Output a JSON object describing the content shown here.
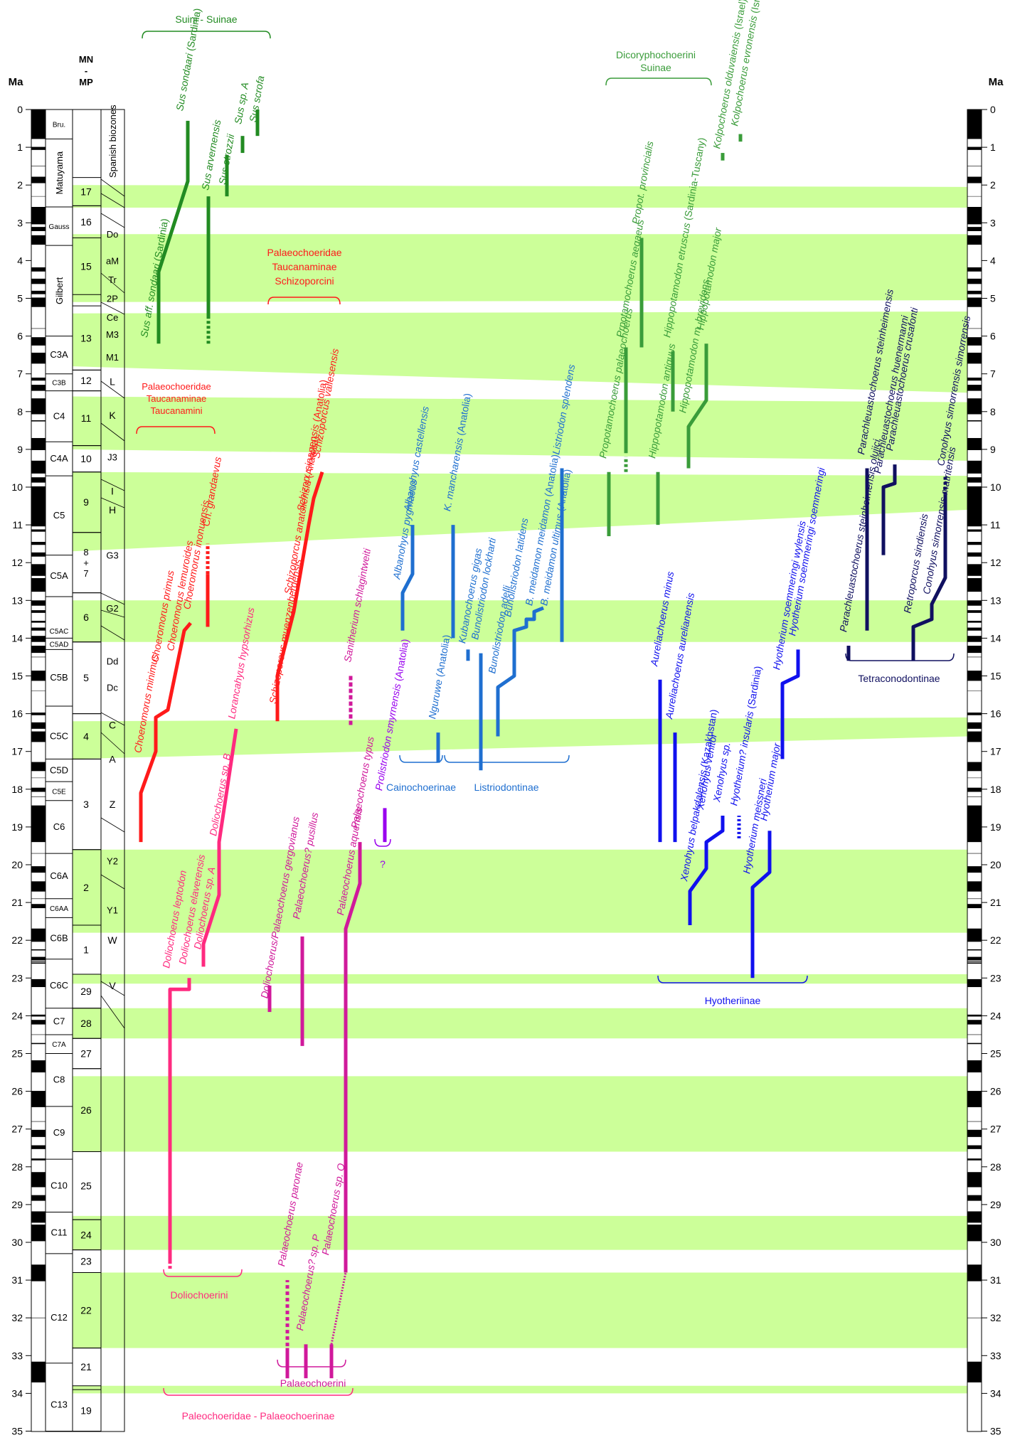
{
  "axis": {
    "label": "Ma",
    "min": 0,
    "max": 35,
    "ticks": [
      0,
      1,
      2,
      3,
      4,
      5,
      6,
      7,
      8,
      9,
      10,
      11,
      12,
      13,
      14,
      15,
      16,
      17,
      18,
      19,
      20,
      21,
      22,
      23,
      24,
      25,
      26,
      27,
      28,
      29,
      30,
      31,
      32,
      33,
      34,
      35
    ]
  },
  "column_headers": {
    "mn": [
      "MN",
      "-",
      "MP"
    ],
    "biozones_title": "Spanish biozones"
  },
  "colors": {
    "band": "#ccff99",
    "suinae": "#228b22",
    "dicoryphochoerini": "#3a9c3a",
    "schizoporcini": "#ff1a1a",
    "doliochoerini": "#ff2a7f",
    "palaeochoerini": "#d0199b",
    "prolistriodon": "#9900ee",
    "listriodontinae": "#1f6fd0",
    "hyotheriinae": "#1010ee",
    "tetraconodontinae": "#101060"
  },
  "epochs": [
    {
      "label": "Bru.",
      "from": 0,
      "to": 0.78
    },
    {
      "label": "Matuyama",
      "from": 0.78,
      "to": 2.58
    },
    {
      "label": "Gauss",
      "from": 2.58,
      "to": 3.6
    },
    {
      "label": "Gilbert",
      "from": 3.6,
      "to": 6.0
    },
    {
      "label": "C3A",
      "from": 6.0,
      "to": 7.0
    },
    {
      "label": "C3B",
      "from": 7.0,
      "to": 7.45
    },
    {
      "label": "C4",
      "from": 7.45,
      "to": 8.8
    },
    {
      "label": "C4A",
      "from": 8.8,
      "to": 9.7
    },
    {
      "label": "C5",
      "from": 9.7,
      "to": 11.8
    },
    {
      "label": "C5A",
      "from": 11.8,
      "to": 12.9
    },
    {
      "label": "C5AC",
      "from": 13.6,
      "to": 14.0
    },
    {
      "label": "C5AD",
      "from": 14.0,
      "to": 14.3
    },
    {
      "label": "C5B",
      "from": 14.3,
      "to": 15.8
    },
    {
      "label": "C5C",
      "from": 16.0,
      "to": 17.2
    },
    {
      "label": "C5D",
      "from": 17.2,
      "to": 17.8
    },
    {
      "label": "C5E",
      "from": 17.8,
      "to": 18.3
    },
    {
      "label": "C6",
      "from": 18.3,
      "to": 19.7
    },
    {
      "label": "C6A",
      "from": 19.7,
      "to": 20.9
    },
    {
      "label": "C6AA",
      "from": 20.9,
      "to": 21.4
    },
    {
      "label": "C6B",
      "from": 21.4,
      "to": 22.5
    },
    {
      "label": "C6C",
      "from": 22.6,
      "to": 23.8
    },
    {
      "label": "C7",
      "from": 23.8,
      "to": 24.5
    },
    {
      "label": "C7A",
      "from": 24.5,
      "to": 25.0
    },
    {
      "label": "C8",
      "from": 25.0,
      "to": 26.4
    },
    {
      "label": "C9",
      "from": 26.4,
      "to": 27.8
    },
    {
      "label": "C10",
      "from": 27.8,
      "to": 29.2
    },
    {
      "label": "C11",
      "from": 29.2,
      "to": 30.3
    },
    {
      "label": "C12",
      "from": 30.8,
      "to": 33.2
    },
    {
      "label": "C13",
      "from": 33.6,
      "to": 35.0
    }
  ],
  "mn_zones": [
    {
      "label": "17",
      "from": 1.8,
      "to": 2.55
    },
    {
      "label": "16",
      "from": 2.55,
      "to": 3.4
    },
    {
      "label": "15",
      "from": 3.4,
      "to": 4.9
    },
    {
      "label": "13",
      "from": 5.2,
      "to": 6.9
    },
    {
      "label": "12",
      "from": 6.9,
      "to": 7.45
    },
    {
      "label": "11",
      "from": 7.45,
      "to": 8.9
    },
    {
      "label": "10",
      "from": 8.9,
      "to": 9.6
    },
    {
      "label": "9",
      "from": 9.6,
      "to": 11.2
    },
    {
      "label": "8\n+\n7",
      "from": 11.2,
      "to": 12.8
    },
    {
      "label": "6",
      "from": 12.8,
      "to": 14.1
    },
    {
      "label": "5",
      "from": 14.1,
      "to": 16.0
    },
    {
      "label": "4",
      "from": 16.0,
      "to": 17.2
    },
    {
      "label": "3",
      "from": 17.2,
      "to": 19.6
    },
    {
      "label": "2",
      "from": 19.6,
      "to": 21.6
    },
    {
      "label": "1",
      "from": 21.6,
      "to": 22.9
    },
    {
      "label": "29",
      "from": 22.9,
      "to": 23.8
    },
    {
      "label": "28",
      "from": 23.8,
      "to": 24.6
    },
    {
      "label": "27",
      "from": 24.6,
      "to": 25.4
    },
    {
      "label": "26",
      "from": 25.4,
      "to": 27.6
    },
    {
      "label": "25",
      "from": 27.6,
      "to": 29.4
    },
    {
      "label": "24",
      "from": 29.4,
      "to": 30.2
    },
    {
      "label": "23",
      "from": 30.2,
      "to": 30.8
    },
    {
      "label": "22",
      "from": 30.8,
      "to": 32.8
    },
    {
      "label": "21",
      "from": 32.8,
      "to": 33.8
    },
    {
      "label": "19",
      "from": 33.9,
      "to": 35.0
    }
  ],
  "biozones": [
    {
      "label": "Do",
      "at": 3.3
    },
    {
      "label": "aM",
      "at": 4.0
    },
    {
      "label": "Tr",
      "at": 4.5
    },
    {
      "label": "2P",
      "at": 5.0
    },
    {
      "label": "Ce",
      "at": 5.5
    },
    {
      "label": "M3",
      "at": 5.95
    },
    {
      "label": "M1",
      "at": 6.55
    },
    {
      "label": "L",
      "at": 7.2
    },
    {
      "label": "K",
      "at": 8.1
    },
    {
      "label": "J3",
      "at": 9.2
    },
    {
      "label": "I",
      "at": 10.1
    },
    {
      "label": "H",
      "at": 10.6
    },
    {
      "label": "G3",
      "at": 11.8
    },
    {
      "label": "G2",
      "at": 13.2
    },
    {
      "label": "Dd",
      "at": 14.6
    },
    {
      "label": "Dc",
      "at": 15.3
    },
    {
      "label": "C",
      "at": 16.3
    },
    {
      "label": "A",
      "at": 17.2
    },
    {
      "label": "Z",
      "at": 18.4
    },
    {
      "label": "Y2",
      "at": 19.9
    },
    {
      "label": "Y1",
      "at": 21.2
    },
    {
      "label": "W",
      "at": 22.0
    },
    {
      "label": "V",
      "at": 23.2
    }
  ],
  "group_labels": {
    "suini": "Suini - Suinae",
    "dicoryphochoerini": [
      "Dicoryphochoerini",
      "Suinae"
    ],
    "schizoporcini": [
      "Palaeochoeridae",
      "Taucanaminae",
      "Schizoporcini"
    ],
    "taucanamini": [
      "Palaeochoeridae",
      "Taucanaminae",
      "Taucanamini"
    ],
    "cainochoerinae": "Cainochoerinae",
    "listriodontinae": "Listriodontinae",
    "hyotheriinae": "Hyotheriinae",
    "tetraconodontinae": "Tetraconodontinae",
    "doliochoerini": "Doliochoerini",
    "palaeochoerini": "Palaeochoerini",
    "palaeochoerinae": "Paleochoeridae - Palaeochoerinae",
    "prolistriodon_query": "?"
  },
  "taxa": [
    {
      "genus": "Sus",
      "epithet": " aff. sondaari",
      "note": "(Sardinia)",
      "color": "suinae"
    },
    {
      "genus": "Sus",
      "epithet": " sondaari",
      "note": "(Sardinia)",
      "color": "suinae"
    },
    {
      "genus": "Sus",
      "epithet": " arvernensis",
      "note": "",
      "color": "suinae"
    },
    {
      "genus": "Sus",
      "epithet": " strozzii",
      "note": "",
      "color": "suinae"
    },
    {
      "genus": "Sus",
      "epithet": " sp. A",
      "note": "",
      "color": "suinae"
    },
    {
      "genus": "Sus",
      "epithet": " scrofa",
      "note": "",
      "color": "suinae"
    },
    {
      "genus": "Propotamochoerus",
      "epithet": " palaeochoerus",
      "note": "",
      "color": "dicoryphochoerini"
    },
    {
      "genus": "Prpotamochoerus",
      "epithet": " aegaeus",
      "note": "",
      "color": "dicoryphochoerini"
    },
    {
      "genus": "Propot.",
      "epithet": " provincialis",
      "note": "",
      "color": "dicoryphochoerini"
    },
    {
      "genus": "Hippopotamodon",
      "epithet": " antiquus",
      "note": "",
      "color": "dicoryphochoerini"
    },
    {
      "genus": "Hippopotamodon",
      "epithet": " etruscus",
      "note": "(Sardinia-Tuscany)",
      "color": "dicoryphochoerini"
    },
    {
      "genus": "Hippopotamodon",
      "epithet": " m. brevidens",
      "note": "",
      "color": "dicoryphochoerini"
    },
    {
      "genus": "Hippopotamodon",
      "epithet": " major",
      "note": "",
      "color": "dicoryphochoerini"
    },
    {
      "genus": "Kolpochoerus",
      "epithet": " olduvaiensis",
      "note": "(Israel)",
      "color": "dicoryphochoerini"
    },
    {
      "genus": "Kolpochoerus",
      "epithet": " evronensis",
      "note": "(Israel)",
      "color": "dicoryphochoerini"
    },
    {
      "genus": "Choeromorus",
      "epithet": " minimus",
      "note": "",
      "color": "schizoporcini"
    },
    {
      "genus": "Choeromorus",
      "epithet": " primus",
      "note": "",
      "color": "schizoporcini"
    },
    {
      "genus": "Choeromorus",
      "epithet": " lemuroides",
      "note": "",
      "color": "schizoporcini"
    },
    {
      "genus": "Choeromorus",
      "epithet": " inonuensis",
      "note": "",
      "color": "schizoporcini"
    },
    {
      "genus": "Ch.",
      "epithet": " grandaevus",
      "note": "",
      "color": "schizoporcini"
    },
    {
      "genus": "Schizoporcus",
      "epithet": " muenzenbergensis",
      "note": "",
      "color": "schizoporcini"
    },
    {
      "genus": "Schizoporcus",
      "epithet": " anatoliensis",
      "note": "(Anatolia)",
      "color": "schizoporcini"
    },
    {
      "genus": "Schizop.",
      "epithet": " sinapensis",
      "note": "(Anatolia)",
      "color": "schizoporcini"
    },
    {
      "genus": "Schizoporcus",
      "epithet": " vallesensis",
      "note": "",
      "color": "schizoporcini"
    },
    {
      "genus": "Doliochoerus",
      "epithet": " sp. B",
      "note": "",
      "color": "doliochoerini"
    },
    {
      "genus": "Lorancahyus",
      "epithet": " hypsorhizus",
      "note": "",
      "color": "doliochoerini"
    },
    {
      "genus": "Doliochoerus",
      "epithet": " sp. A",
      "note": "",
      "color": "doliochoerini"
    },
    {
      "genus": "Doliochoerus",
      "epithet": " elaverensis",
      "note": "",
      "color": "doliochoerini"
    },
    {
      "genus": "Doliochoerus",
      "epithet": " leptodon",
      "note": "",
      "color": "doliochoerini"
    },
    {
      "genus": "Doliochoerus/Palaeochoerus",
      "epithet": " gergovianus",
      "note": "",
      "color": "palaeochoerini"
    },
    {
      "genus": "Palaeochoerus?",
      "epithet": " pusillus",
      "note": "",
      "color": "palaeochoerini"
    },
    {
      "genus": "Palaeochoerus",
      "epithet": " aquensis",
      "note": "",
      "color": "palaeochoerini"
    },
    {
      "genus": "Palaeochoerus",
      "epithet": " typus",
      "note": "",
      "color": "palaeochoerini"
    },
    {
      "genus": "Sanitherium",
      "epithet": " schlagintweiti",
      "note": "",
      "color": "palaeochoerini"
    },
    {
      "genus": "Palaeochoerus",
      "epithet": " paronae",
      "note": "",
      "color": "palaeochoerini"
    },
    {
      "genus": "Palaeochoerus?",
      "epithet": " sp. P",
      "note": "",
      "color": "palaeochoerini"
    },
    {
      "genus": "Palaeochoerus",
      "epithet": " sp. Q",
      "note": "",
      "color": "palaeochoerini"
    },
    {
      "genus": "Prolistriodon",
      "epithet": " smyrnensis",
      "note": "(Anatolia)",
      "color": "prolistriodon"
    },
    {
      "genus": "Albanohyus",
      "epithet": " pygmaeus",
      "note": "",
      "color": "listriodontinae"
    },
    {
      "genus": "Albanohyus",
      "epithet": " castellensis",
      "note": "",
      "color": "listriodontinae"
    },
    {
      "genus": "Nguruwe",
      "epithet": "",
      "note": "(Anatolia)",
      "color": "listriodontinae"
    },
    {
      "genus": "K.",
      "epithet": " mancharensis",
      "note": "(Anatolia)",
      "color": "listriodontinae"
    },
    {
      "genus": "Kubanochoerus",
      "epithet": " gigas",
      "note": "",
      "color": "listriodontinae"
    },
    {
      "genus": "Bunolistriodon",
      "epithet": " lockharti",
      "note": "",
      "color": "listriodontinae"
    },
    {
      "genus": "Bunolistriodon",
      "epithet": " adelli",
      "note": "",
      "color": "listriodontinae"
    },
    {
      "genus": "Bunolistriodon",
      "epithet": " latidens",
      "note": "",
      "color": "listriodontinae"
    },
    {
      "genus": "B.",
      "epithet": " meidamon meidamon",
      "note": "(Anatolia)",
      "color": "listriodontinae"
    },
    {
      "genus": "B.",
      "epithet": " meidamon ultimus",
      "note": "(Anatolia)",
      "color": "listriodontinae"
    },
    {
      "genus": "Listriodon",
      "epithet": " splendens",
      "note": "",
      "color": "listriodontinae"
    },
    {
      "genus": "Aureliachoerus",
      "epithet": " minus",
      "note": "",
      "color": "hyotheriinae"
    },
    {
      "genus": "Aureliachoerus",
      "epithet": " aurelianensis",
      "note": "",
      "color": "hyotheriinae"
    },
    {
      "genus": "Xenohyus",
      "epithet": " belpakdalensis",
      "note": "(Kazakhstan)",
      "color": "hyotheriinae"
    },
    {
      "genus": "Xenohyus",
      "epithet": " venitor",
      "note": "",
      "color": "hyotheriinae"
    },
    {
      "genus": "Xenohyus",
      "epithet": " sp.",
      "note": "",
      "color": "hyotheriinae"
    },
    {
      "genus": "Hyotherium?",
      "epithet": " insularis",
      "note": "(Sardinia)",
      "color": "hyotheriinae"
    },
    {
      "genus": "Hyotherium",
      "epithet": " meissneri",
      "note": "",
      "color": "hyotheriinae"
    },
    {
      "genus": "Hyotherium",
      "epithet": " major",
      "note": "",
      "color": "hyotheriinae"
    },
    {
      "genus": "Hyotherium",
      "epithet": " soemmeringi wylensis",
      "note": "",
      "color": "hyotheriinae"
    },
    {
      "genus": "Hyotherium",
      "epithet": " soemmeringi soemmeringi",
      "note": "",
      "color": "hyotheriinae"
    },
    {
      "genus": "Parachleuastochoerus",
      "epithet": " steinheimensis olujici",
      "note": "",
      "color": "tetraconodontinae"
    },
    {
      "genus": "Parachleuastochoerus",
      "epithet": " steinheimensis",
      "note": "",
      "color": "tetraconodontinae"
    },
    {
      "genus": "Parachleuastochoerus",
      "epithet": " huenermanni",
      "note": "",
      "color": "tetraconodontinae"
    },
    {
      "genus": "Parachleuastochoerus",
      "epithet": " crusafonti",
      "note": "",
      "color": "tetraconodontinae"
    },
    {
      "genus": "Retroporcus",
      "epithet": " sindiensis",
      "note": "",
      "color": "tetraconodontinae"
    },
    {
      "genus": "Conohyus",
      "epithet": " simorrensis matritensis",
      "note": "",
      "color": "tetraconodontinae"
    },
    {
      "genus": "Conohyus",
      "epithet": " simorrensis simorrensis",
      "note": "",
      "color": "tetraconodontinae"
    }
  ]
}
